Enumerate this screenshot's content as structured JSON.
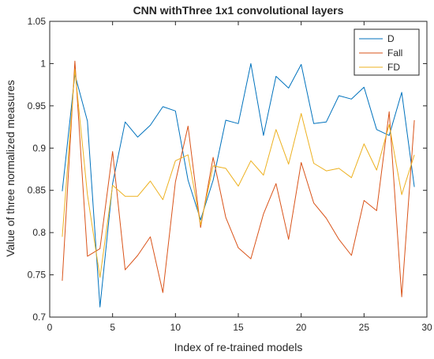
{
  "chart_data": {
    "type": "line",
    "title": "CNN withThree 1x1 convolutional layers",
    "xlabel": "Index of re-trained models",
    "ylabel": "Value of three normalized measures",
    "xlim": [
      0,
      30
    ],
    "ylim": [
      0.7,
      1.05
    ],
    "xticks": [
      0,
      5,
      10,
      15,
      20,
      25,
      30
    ],
    "yticks": [
      0.7,
      0.75,
      0.8,
      0.85,
      0.9,
      0.95,
      1,
      1.05
    ],
    "xtick_labels": [
      "0",
      "5",
      "10",
      "15",
      "20",
      "25",
      "30"
    ],
    "ytick_labels": [
      "0.7",
      "0.75",
      "0.8",
      "0.85",
      "0.9",
      "0.95",
      "1",
      "1.05"
    ],
    "grid": false,
    "legend_position": "top-right",
    "x": [
      1,
      2,
      3,
      4,
      5,
      6,
      7,
      8,
      9,
      10,
      11,
      12,
      13,
      14,
      15,
      16,
      17,
      18,
      19,
      20,
      21,
      22,
      23,
      24,
      25,
      26,
      27,
      28,
      29
    ],
    "series": [
      {
        "name": "D",
        "color": "#0072BD",
        "values": [
          0.849,
          0.987,
          0.932,
          0.712,
          0.858,
          0.931,
          0.913,
          0.927,
          0.949,
          0.944,
          0.862,
          0.815,
          0.862,
          0.933,
          0.929,
          1.0,
          0.915,
          0.985,
          0.971,
          0.999,
          0.929,
          0.931,
          0.962,
          0.958,
          0.972,
          0.922,
          0.915,
          0.966,
          0.854
        ]
      },
      {
        "name": "Fall",
        "color": "#D95319",
        "values": [
          0.743,
          1.003,
          0.772,
          0.781,
          0.896,
          0.756,
          0.773,
          0.795,
          0.729,
          0.86,
          0.926,
          0.806,
          0.889,
          0.818,
          0.782,
          0.769,
          0.822,
          0.858,
          0.792,
          0.883,
          0.835,
          0.817,
          0.792,
          0.773,
          0.838,
          0.826,
          0.943,
          0.724,
          0.933
        ]
      },
      {
        "name": "FD",
        "color": "#EDB120",
        "values": [
          0.795,
          0.993,
          0.845,
          0.747,
          0.856,
          0.843,
          0.843,
          0.861,
          0.839,
          0.885,
          0.892,
          0.809,
          0.879,
          0.876,
          0.855,
          0.885,
          0.868,
          0.922,
          0.881,
          0.941,
          0.882,
          0.873,
          0.876,
          0.865,
          0.905,
          0.874,
          0.928,
          0.845,
          0.892
        ]
      }
    ]
  }
}
